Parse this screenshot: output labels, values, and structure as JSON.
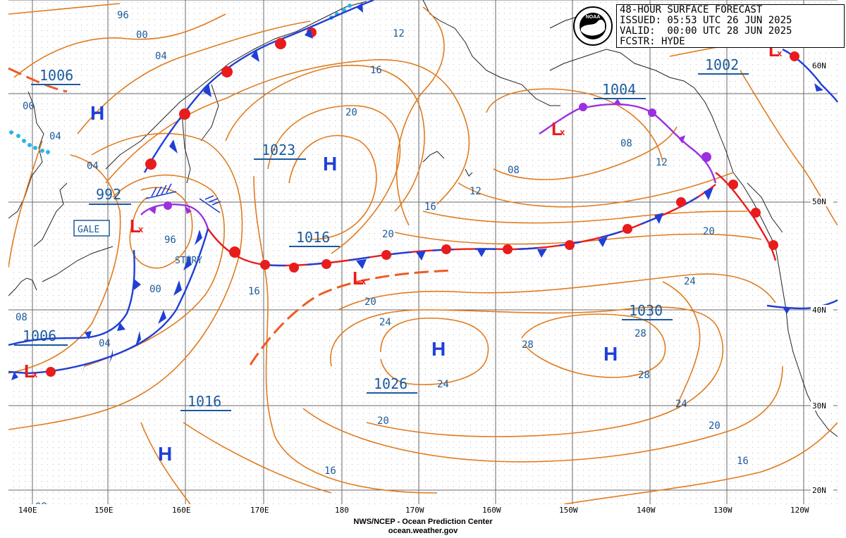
{
  "header": {
    "line1": "48-HOUR SURFACE FORECAST",
    "line2": "ISSUED: 05:53 UTC 26 JUN 2025",
    "line3": "VALID:  00:00 UTC 28 JUN 2025",
    "line4": "FCSTR: HYDE"
  },
  "logo": {
    "name": "noaa-logo",
    "text": "NOAA"
  },
  "footer": {
    "line1": "NWS/NCEP - Ocean Prediction Center",
    "line2": "ocean.weather.gov"
  },
  "longitude_labels": [
    "140E",
    "150E",
    "160E",
    "170E",
    "180",
    "170W",
    "160W",
    "150W",
    "140W",
    "130W",
    "120W"
  ],
  "latitude_labels": [
    "60N",
    "50N",
    "40N",
    "30N",
    "20N"
  ],
  "pressure_centers": [
    {
      "type": "L",
      "value": "992"
    },
    {
      "type": "L",
      "value": "1006"
    },
    {
      "type": "H",
      "value": "1006"
    },
    {
      "type": "H",
      "value": "1023"
    },
    {
      "type": "L",
      "value": "1016"
    },
    {
      "type": "H",
      "value": "1016"
    },
    {
      "type": "H",
      "value": "1026"
    },
    {
      "type": "H",
      "value": "1030"
    },
    {
      "type": "L",
      "value": "1004"
    },
    {
      "type": "L",
      "value": "1002"
    }
  ],
  "annotations": {
    "gale": "GALE",
    "stationary": "STNRY"
  },
  "isobar_labels": [
    "96",
    "00",
    "04",
    "08",
    "12",
    "16",
    "20",
    "24",
    "28"
  ],
  "colors": {
    "isobar": "#e07b1e",
    "cold_front": "#1f3fd6",
    "warm_front": "#e81c1c",
    "occluded_front": "#9b30e0",
    "trough": "#ee5a24",
    "label": "#1b5a9c",
    "high": "#1f3fd6",
    "low": "#e81c1c"
  }
}
